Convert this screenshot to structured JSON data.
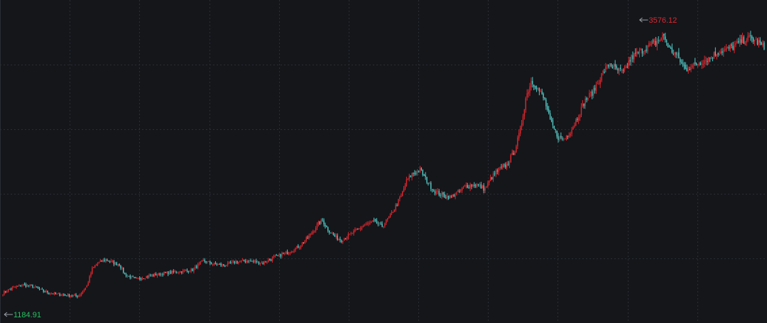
{
  "chart_data": {
    "type": "candlestick",
    "title": "",
    "xlabel": "",
    "ylabel": "",
    "ylim": [
      1000,
      3700
    ],
    "grid": true,
    "colors": {
      "up": "#e0262e",
      "down": "#52c9c6",
      "background": "#14161a",
      "grid": "#2a2d33",
      "low_label": "#22c55e",
      "high_label": "#e0262e"
    },
    "trend": [
      [
        0,
        1210
      ],
      [
        6,
        1250
      ],
      [
        14,
        1280
      ],
      [
        22,
        1270
      ],
      [
        30,
        1225
      ],
      [
        40,
        1200
      ],
      [
        50,
        1190
      ],
      [
        56,
        1185
      ],
      [
        62,
        1270
      ],
      [
        66,
        1420
      ],
      [
        70,
        1470
      ],
      [
        76,
        1500
      ],
      [
        82,
        1470
      ],
      [
        86,
        1460
      ],
      [
        90,
        1370
      ],
      [
        98,
        1330
      ],
      [
        108,
        1360
      ],
      [
        118,
        1380
      ],
      [
        126,
        1390
      ],
      [
        132,
        1400
      ],
      [
        140,
        1410
      ],
      [
        148,
        1490
      ],
      [
        156,
        1460
      ],
      [
        164,
        1450
      ],
      [
        172,
        1480
      ],
      [
        182,
        1490
      ],
      [
        192,
        1470
      ],
      [
        200,
        1520
      ],
      [
        210,
        1560
      ],
      [
        218,
        1610
      ],
      [
        226,
        1700
      ],
      [
        232,
        1800
      ],
      [
        236,
        1840
      ],
      [
        240,
        1760
      ],
      [
        246,
        1690
      ],
      [
        250,
        1670
      ],
      [
        258,
        1730
      ],
      [
        266,
        1790
      ],
      [
        274,
        1830
      ],
      [
        280,
        1790
      ],
      [
        286,
        1880
      ],
      [
        294,
        2050
      ],
      [
        298,
        2180
      ],
      [
        302,
        2240
      ],
      [
        308,
        2280
      ],
      [
        312,
        2200
      ],
      [
        318,
        2100
      ],
      [
        324,
        2060
      ],
      [
        330,
        2040
      ],
      [
        336,
        2080
      ],
      [
        342,
        2140
      ],
      [
        350,
        2150
      ],
      [
        356,
        2110
      ],
      [
        360,
        2200
      ],
      [
        366,
        2280
      ],
      [
        372,
        2320
      ],
      [
        378,
        2450
      ],
      [
        382,
        2620
      ],
      [
        386,
        2900
      ],
      [
        390,
        3050
      ],
      [
        394,
        3000
      ],
      [
        400,
        2880
      ],
      [
        404,
        2700
      ],
      [
        410,
        2560
      ],
      [
        414,
        2540
      ],
      [
        420,
        2630
      ],
      [
        426,
        2780
      ],
      [
        430,
        2880
      ],
      [
        436,
        2960
      ],
      [
        442,
        3100
      ],
      [
        448,
        3200
      ],
      [
        452,
        3150
      ],
      [
        458,
        3120
      ],
      [
        464,
        3250
      ],
      [
        470,
        3300
      ],
      [
        476,
        3350
      ],
      [
        482,
        3380
      ],
      [
        488,
        3440
      ],
      [
        492,
        3330
      ],
      [
        498,
        3260
      ],
      [
        504,
        3150
      ],
      [
        510,
        3180
      ],
      [
        516,
        3220
      ],
      [
        522,
        3250
      ],
      [
        528,
        3300
      ],
      [
        534,
        3320
      ],
      [
        540,
        3350
      ],
      [
        546,
        3400
      ],
      [
        552,
        3420
      ],
      [
        558,
        3380
      ],
      [
        562,
        3330
      ]
    ],
    "annotations": [
      {
        "label": "3576.12",
        "type": "high",
        "index": 470,
        "value": 3576.12
      },
      {
        "label": "1184.91",
        "type": "low",
        "index": 56,
        "value": 1184.91
      }
    ]
  }
}
